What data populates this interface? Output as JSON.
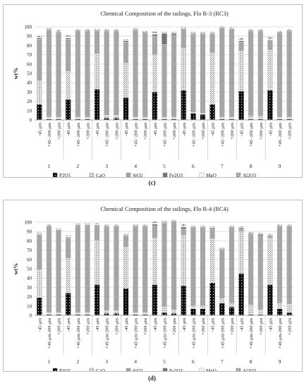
{
  "legend_labels": [
    "P2O5",
    "CaO",
    "SiO2",
    "Fe2O3",
    "MgO",
    "Al2O3"
  ],
  "chart_data": [
    {
      "type": "bar",
      "stacked": true,
      "title": "Chemical Composition of the tailings, Flo R-3 (RC3)",
      "ylabel": "wt%",
      "ylim": [
        0,
        100
      ],
      "yticks": [
        0,
        10,
        20,
        30,
        40,
        50,
        60,
        70,
        80,
        90,
        100
      ],
      "grid": "horizontal",
      "legend_position": "bottom",
      "groups": [
        "1",
        "2",
        "3",
        "4",
        "5",
        "6",
        "7",
        "8",
        "9"
      ],
      "categories": [
        "-45 µm",
        "+45 -200 µm",
        "+200 µm"
      ],
      "series_names": [
        "P2O5",
        "CaO",
        "SiO2",
        "Fe2O3",
        "MgO",
        "Al2O3"
      ],
      "stacks": [
        [
          [
            17,
            25,
            45,
            1,
            0.5,
            2
          ],
          [
            1,
            2,
            93,
            1,
            0.5,
            1
          ],
          [
            1,
            2,
            90,
            1,
            0.5,
            2
          ]
        ],
        [
          [
            22,
            30,
            35,
            1,
            1,
            2
          ],
          [
            1,
            2,
            92,
            1,
            0.5,
            1
          ],
          [
            1,
            2,
            92,
            1,
            0.5,
            1
          ]
        ],
        [
          [
            33,
            38,
            24,
            1,
            0.5,
            1
          ],
          [
            2,
            3,
            90,
            1,
            0.5,
            1
          ],
          [
            2,
            3,
            90,
            1,
            0.5,
            1
          ]
        ],
        [
          [
            24,
            37,
            23,
            1,
            0.5,
            1
          ],
          [
            1,
            2,
            93,
            1,
            0.5,
            1
          ],
          [
            1,
            2,
            90,
            1,
            0.5,
            1
          ]
        ],
        [
          [
            30,
            40,
            20,
            2,
            1,
            2
          ],
          [
            1,
            2,
            78,
            12,
            0.5,
            1
          ],
          [
            1,
            2,
            88,
            2,
            0.5,
            1
          ]
        ],
        [
          [
            32,
            45,
            20,
            1,
            0.5,
            1
          ],
          [
            7,
            1,
            84,
            1,
            0.5,
            1
          ],
          [
            6,
            1,
            85,
            1,
            0.5,
            1
          ]
        ],
        [
          [
            17,
            55,
            20,
            1,
            0.5,
            1
          ],
          [
            1,
            2,
            95,
            1,
            0.5,
            1
          ],
          [
            1,
            2,
            94,
            1,
            0.5,
            1
          ]
        ],
        [
          [
            31,
            43,
            10,
            1,
            1,
            2
          ],
          [
            1,
            3,
            91,
            1,
            0.5,
            1
          ],
          [
            1,
            3,
            91,
            1,
            0.5,
            1
          ]
        ],
        [
          [
            32,
            43,
            10,
            1,
            1,
            2
          ],
          [
            1,
            2,
            90,
            1,
            0.5,
            1
          ],
          [
            1,
            2,
            92,
            1,
            0.5,
            1
          ]
        ]
      ],
      "caption": "(c)"
    },
    {
      "type": "bar",
      "stacked": true,
      "title": "Chemical Composition of the tailings, Flo R-4 (RC4)",
      "ylabel": "wt%",
      "ylim": [
        0,
        100
      ],
      "yticks": [
        0,
        10,
        20,
        30,
        40,
        50,
        60,
        70,
        80,
        90,
        100
      ],
      "grid": "horizontal",
      "legend_position": "bottom",
      "groups": [
        "1",
        "2",
        "3",
        "4",
        "5",
        "6",
        "7",
        "8",
        "9"
      ],
      "categories": [
        "-45 µm",
        "+45 µm-200 µm",
        "+200 µm"
      ],
      "series_names": [
        "P2O5",
        "CaO",
        "SiO2",
        "Fe2O3",
        "MgO",
        "Al2O3"
      ],
      "stacks": [
        [
          [
            19,
            30,
            37,
            1,
            1,
            1
          ],
          [
            1,
            2,
            92,
            1,
            0.5,
            1
          ],
          [
            1,
            2,
            88,
            1,
            0.5,
            1
          ]
        ],
        [
          [
            24,
            37,
            22,
            1,
            1,
            1
          ],
          [
            1,
            2,
            93,
            1,
            0.5,
            1
          ],
          [
            1,
            2,
            93,
            1,
            0.5,
            1
          ]
        ],
        [
          [
            33,
            47,
            16,
            1,
            1,
            1
          ],
          [
            2,
            3,
            90,
            1,
            0.5,
            1
          ],
          [
            2,
            3,
            90,
            1,
            0.5,
            1
          ]
        ],
        [
          [
            29,
            44,
            12,
            1,
            0.5,
            1
          ],
          [
            1,
            2,
            92,
            1,
            0.5,
            1
          ],
          [
            1,
            2,
            92,
            1,
            0.5,
            1
          ]
        ],
        [
          [
            33,
            50,
            13,
            2,
            1,
            2
          ],
          [
            3,
            6,
            90,
            1,
            0.5,
            1
          ],
          [
            2,
            4,
            94,
            1,
            0.5,
            1
          ]
        ],
        [
          [
            32,
            54,
            7,
            2,
            1,
            2
          ],
          [
            7,
            3,
            84,
            1,
            0.5,
            1
          ],
          [
            7,
            3,
            84,
            1,
            0.5,
            1
          ]
        ],
        [
          [
            35,
            47,
            11,
            1,
            0.5,
            1
          ],
          [
            13,
            5,
            52,
            1,
            0.5,
            1
          ],
          [
            9,
            4,
            81,
            1,
            0.5,
            1
          ]
        ],
        [
          [
            45,
            45,
            3,
            1,
            0.5,
            1
          ],
          [
            1,
            10,
            76,
            1,
            0.5,
            1
          ],
          [
            1,
            5,
            79,
            2,
            0.5,
            1
          ]
        ],
        [
          [
            33,
            50,
            2,
            1,
            0.5,
            1
          ],
          [
            7,
            6,
            82,
            1,
            0.5,
            1
          ],
          [
            3,
            9,
            83,
            1,
            0.5,
            1
          ]
        ]
      ],
      "caption": "(d)"
    }
  ]
}
